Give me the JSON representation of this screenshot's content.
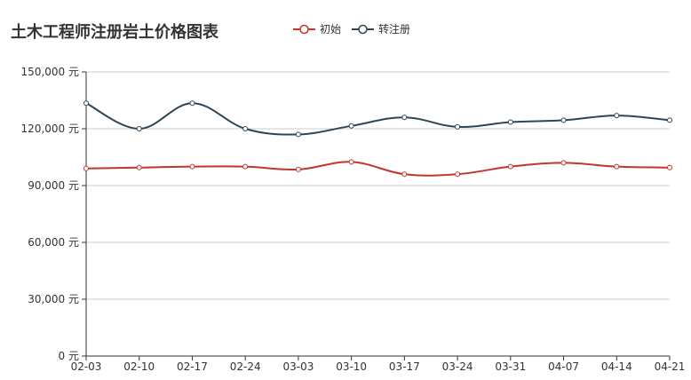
{
  "chart_data": {
    "type": "line",
    "title": "土木工程师注册岩土价格图表",
    "x": [
      "02-03",
      "02-10",
      "02-17",
      "02-24",
      "03-03",
      "03-10",
      "03-17",
      "03-24",
      "03-31",
      "04-07",
      "04-14",
      "04-21"
    ],
    "series": [
      {
        "name": "初始",
        "color": "#c23531",
        "values": [
          99000,
          99500,
          100000,
          100000,
          98500,
          102500,
          96000,
          96000,
          100000,
          102000,
          100000,
          99500
        ]
      },
      {
        "name": "转注册",
        "color": "#2f4554",
        "values": [
          133500,
          120000,
          133500,
          120000,
          117000,
          121500,
          126000,
          121000,
          123500,
          124500,
          127000,
          124500
        ]
      }
    ],
    "yticks": [
      "0 元",
      "30,000 元",
      "60,000 元",
      "90,000 元",
      "120,000 元",
      "150,000 元"
    ],
    "ylim": [
      0,
      150000
    ],
    "grid": true,
    "legend_position": "top"
  }
}
